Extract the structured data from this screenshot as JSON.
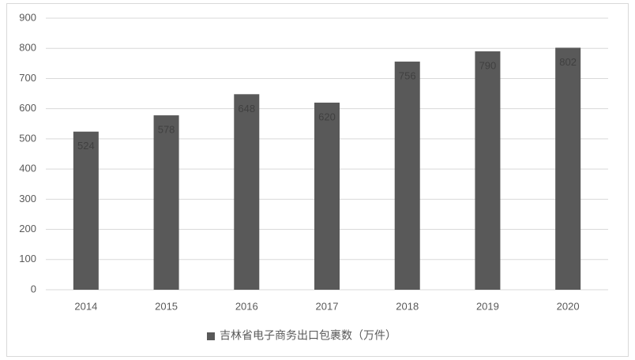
{
  "chart_data": {
    "type": "bar",
    "categories": [
      "2014",
      "2015",
      "2016",
      "2017",
      "2018",
      "2019",
      "2020"
    ],
    "series": [
      {
        "name": "吉林省电子商务出口包裹数（万件）",
        "color": "#595959",
        "values": [
          524,
          578,
          648,
          620,
          756,
          790,
          802
        ]
      }
    ],
    "ylim": [
      0,
      900
    ],
    "yticks": [
      0,
      100,
      200,
      300,
      400,
      500,
      600,
      700,
      800,
      900
    ],
    "grid": true,
    "legend": "bottom",
    "data_labels": true
  }
}
